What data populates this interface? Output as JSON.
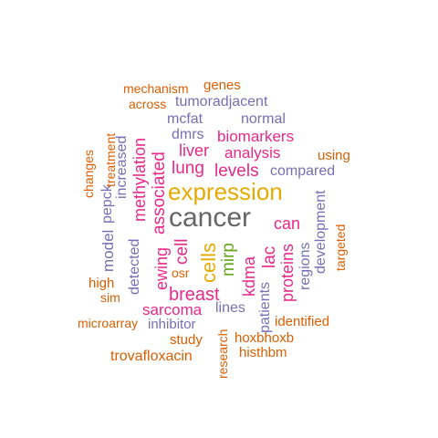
{
  "colors": {
    "orange": "#D95F02",
    "purple": "#7570B3",
    "magenta": "#E7298A",
    "gold": "#E6AB02",
    "green": "#66A61E",
    "gray": "#666666"
  },
  "words": [
    {
      "text": "cancer",
      "color": "gray"
    },
    {
      "text": "expression",
      "color": "gold"
    },
    {
      "text": "cells",
      "color": "gold"
    },
    {
      "text": "mirp",
      "color": "green"
    },
    {
      "text": "breast",
      "color": "magenta"
    },
    {
      "text": "lung",
      "color": "magenta"
    },
    {
      "text": "levels",
      "color": "magenta"
    },
    {
      "text": "cell",
      "color": "magenta"
    },
    {
      "text": "kdma",
      "color": "magenta"
    },
    {
      "text": "lac",
      "color": "magenta"
    },
    {
      "text": "can",
      "color": "magenta"
    },
    {
      "text": "liver",
      "color": "magenta"
    },
    {
      "text": "analysis",
      "color": "magenta"
    },
    {
      "text": "biomarkers",
      "color": "magenta"
    },
    {
      "text": "associated",
      "color": "magenta"
    },
    {
      "text": "methylation",
      "color": "magenta"
    },
    {
      "text": "ewing",
      "color": "magenta"
    },
    {
      "text": "sarcoma",
      "color": "magenta"
    },
    {
      "text": "proteins",
      "color": "magenta"
    },
    {
      "text": "compared",
      "color": "purple"
    },
    {
      "text": "dmrs",
      "color": "purple"
    },
    {
      "text": "mcfat",
      "color": "purple"
    },
    {
      "text": "normal",
      "color": "purple"
    },
    {
      "text": "tumoradjacent",
      "color": "purple"
    },
    {
      "text": "increased",
      "color": "purple"
    },
    {
      "text": "model",
      "color": "purple"
    },
    {
      "text": "pepck",
      "color": "purple"
    },
    {
      "text": "detected",
      "color": "purple"
    },
    {
      "text": "lines",
      "color": "purple"
    },
    {
      "text": "patients",
      "color": "purple"
    },
    {
      "text": "regions",
      "color": "purple"
    },
    {
      "text": "development",
      "color": "purple"
    },
    {
      "text": "inhibitor",
      "color": "purple"
    },
    {
      "text": "genes",
      "color": "orange"
    },
    {
      "text": "mechanism",
      "color": "orange"
    },
    {
      "text": "across",
      "color": "orange"
    },
    {
      "text": "treatment",
      "color": "orange"
    },
    {
      "text": "changes",
      "color": "orange"
    },
    {
      "text": "using",
      "color": "orange"
    },
    {
      "text": "targeted",
      "color": "orange"
    },
    {
      "text": "high",
      "color": "orange"
    },
    {
      "text": "sim",
      "color": "orange"
    },
    {
      "text": "osr",
      "color": "orange"
    },
    {
      "text": "microarray",
      "color": "orange"
    },
    {
      "text": "study",
      "color": "orange"
    },
    {
      "text": "identified",
      "color": "orange"
    },
    {
      "text": "hoxbhoxb",
      "color": "orange"
    },
    {
      "text": "histhbm",
      "color": "orange"
    },
    {
      "text": "research",
      "color": "orange"
    },
    {
      "text": "trovafloxacin",
      "color": "orange"
    }
  ]
}
